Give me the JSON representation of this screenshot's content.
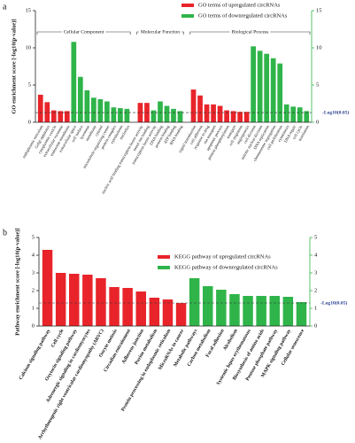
{
  "chart_data": [
    {
      "type": "bar",
      "panel": "a",
      "y_label": "GO enrichment score [-log10(p-value)]",
      "series": [
        {
          "name": "GO terms of upregulated circRNAs",
          "color": "#e8242a"
        },
        {
          "name": "GO terms of downregulated circRNAs",
          "color": "#2fb44a"
        }
      ],
      "groups": [
        {
          "name": "Cellular Component",
          "categories": [
            "endoplasmic reticulum",
            "Golgi apparatus",
            "cytoplasmic vesicle",
            "extracellular exosome",
            "endosome membrane",
            "extracellular space",
            "cell surface",
            "lysosome",
            "membrane",
            "cytosol",
            "microtubule organizing center",
            "protein complex",
            "cytoskeleton",
            "nucleolus"
          ],
          "series": [
            {
              "values": [
                3.7,
                2.7,
                1.6,
                1.5,
                1.5,
                null,
                null,
                null,
                null,
                null,
                null,
                null,
                null,
                null
              ]
            },
            {
              "values": [
                null,
                null,
                null,
                null,
                null,
                10.8,
                6.1,
                4.3,
                3.3,
                3.1,
                2.8,
                2.0,
                1.9,
                1.8
              ]
            }
          ]
        },
        {
          "name": "Molecular Function",
          "categories": [
            "nucleic acid binding transcription factor activity",
            "metal ion binding",
            "transcription factor activity",
            "DNA binding",
            "protein binding",
            "ATP binding",
            "RNA binding"
          ],
          "series": [
            {
              "values": [
                2.6,
                2.6,
                null,
                null,
                null,
                null,
                null
              ]
            },
            {
              "values": [
                null,
                null,
                1.6,
                2.8,
                2.2,
                1.8,
                1.5
              ]
            }
          ]
        },
        {
          "name": "Biological Process",
          "categories": [
            "signal transduction",
            "cell adhesion",
            "response to drug",
            "ion transport",
            "apoptotic process",
            "protein phosphorylation",
            "transport",
            "cell migration",
            "angiogenesis",
            "cell division",
            "mitotic nuclear division",
            "DNA replication",
            "chromosome segregation",
            "cell proliferation",
            "cytokinesis",
            "DNA repair",
            "cell cycle",
            "translation"
          ],
          "series": [
            {
              "values": [
                4.4,
                3.6,
                2.4,
                2.4,
                2.2,
                1.6,
                1.5,
                1.4,
                1.4,
                null,
                null,
                null,
                null,
                null,
                null,
                null,
                null,
                null
              ]
            },
            {
              "values": [
                null,
                null,
                null,
                null,
                null,
                null,
                null,
                null,
                null,
                10.2,
                9.6,
                9.2,
                8.6,
                7.9,
                2.4,
                2.1,
                2.0,
                1.5
              ]
            }
          ]
        }
      ],
      "ylim": [
        0,
        15
      ],
      "yticks": [
        0,
        5,
        10,
        15
      ],
      "y2lim": [
        0,
        15
      ],
      "y2ticks": [
        0,
        5,
        10,
        15
      ],
      "threshold": {
        "value": 1.3,
        "label": "-Log10(0.05)"
      }
    },
    {
      "type": "bar",
      "panel": "b",
      "y_label": "Pathway enrichment score [-log10(p-value)]",
      "categories": [
        "Calcium signaling pathway",
        "Cell cycle",
        "Oxytocin signaling pathway",
        "Adrenergic signaling in cardiomyocytes",
        "Arrhythmogenic right ventricular cardiomyopathy (ARVC)",
        "Oocyte meiosis",
        "Circadian entrainment",
        "Adherens junction",
        "Purine metabolism",
        "Protein processing in endoplasmic reticulum",
        "MicroRNAs in cancer",
        "Metabolic pathways",
        "Carbon metabolism",
        "Focal adhesion",
        "Alcoholism",
        "Systemic lupus erythematosus",
        "Biosynthesis of amino acids",
        "Pentose phosphate pathway",
        "MAPK signaling pathway",
        "Cellular senescence"
      ],
      "series": [
        {
          "name": "KEGG pathway of upregulated circRNAs",
          "color": "#e8242a",
          "values": [
            4.3,
            3.0,
            2.95,
            2.9,
            2.7,
            2.2,
            2.15,
            1.95,
            1.6,
            1.5,
            1.3,
            null,
            null,
            null,
            null,
            null,
            null,
            null,
            null,
            null
          ]
        },
        {
          "name": "KEGG pathway of downregulated circRNAs",
          "color": "#2fb44a",
          "values": [
            null,
            null,
            null,
            null,
            null,
            null,
            null,
            null,
            null,
            null,
            null,
            2.7,
            2.25,
            2.05,
            1.8,
            1.7,
            1.7,
            1.7,
            1.65,
            1.35
          ]
        }
      ],
      "ylim": [
        0,
        5
      ],
      "yticks": [
        0,
        1,
        2,
        3,
        4,
        5
      ],
      "y2lim": [
        0,
        5
      ],
      "y2ticks": [
        0,
        1,
        2,
        3,
        4,
        5
      ],
      "threshold": {
        "value": 1.3,
        "label": "-Log10(0.05)"
      }
    }
  ]
}
